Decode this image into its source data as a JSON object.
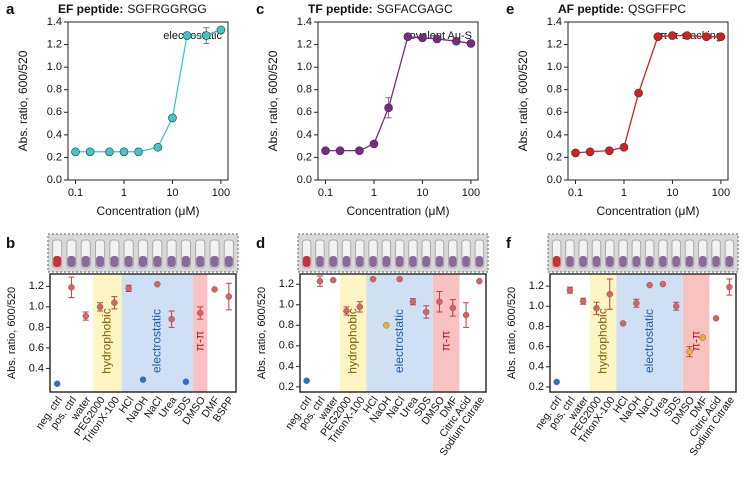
{
  "chart_data": [
    {
      "type": "line",
      "panel": "a",
      "title": "EF peptide:",
      "sequence": "SGFRGGRGG",
      "annotation": "electrostatic",
      "x_label": "Concentration (μM)",
      "y_label": "Abs. ratio, 600/520",
      "x": [
        0.1,
        0.2,
        0.5,
        1,
        2,
        5,
        10,
        20,
        50,
        100
      ],
      "values": [
        0.25,
        0.25,
        0.25,
        0.25,
        0.25,
        0.29,
        0.55,
        1.28,
        1.28,
        1.33
      ],
      "errors": [
        null,
        null,
        null,
        null,
        null,
        null,
        null,
        null,
        0.07,
        null
      ],
      "color": "#3cc8c8",
      "log_x": true,
      "xlim": [
        0.07,
        140
      ],
      "xticks": [
        0.1,
        1,
        10,
        100
      ],
      "ylim": [
        0,
        1.4
      ],
      "yticks": [
        {
          "value": 0,
          "label": "0.0"
        },
        0.2,
        0.4,
        0.6,
        0.8,
        {
          "value": 1,
          "label": "1.0"
        },
        1.2,
        1.4
      ]
    },
    {
      "type": "dot",
      "panel": "b",
      "y_label": "Abs. ratio, 600/520",
      "categories": [
        "neg. ctrl",
        "pos. ctrl",
        "water",
        "PEG2000",
        "TritonX-100",
        "HCl",
        "NaOH",
        "NaCl",
        "Urea",
        "SDS",
        "DMSO",
        "DMF",
        "BSPP"
      ],
      "values": [
        0.25,
        1.19,
        0.91,
        1.0,
        1.04,
        1.18,
        0.29,
        1.22,
        0.88,
        0.27,
        0.94,
        1.17,
        1.1
      ],
      "errors": [
        null,
        0.1,
        0.04,
        0.04,
        0.06,
        0.03,
        null,
        null,
        0.08,
        null,
        0.06,
        null,
        0.13
      ],
      "colors": [
        "#2a6fd6",
        "#e06060",
        "#e06060",
        "#e06060",
        "#e06060",
        "#e06060",
        "#2a6fd6",
        "#e06060",
        "#e06060",
        "#2a6fd6",
        "#e06060",
        "#e06060",
        "#e06060"
      ],
      "regions": [
        {
          "label": "hydrophobic",
          "start": "PEG2000",
          "end": "TritonX-100",
          "color": "#fdf5c4",
          "text_color": "#7a6200"
        },
        {
          "label": "electrostatic",
          "start": "HCl",
          "end": "SDS",
          "color": "#cfe0f4",
          "text_color": "#1f5fb0"
        },
        {
          "label": "π-π",
          "start": "DMSO",
          "end": "DMSO",
          "color": "#f9c2c2",
          "text_color": "#c01818"
        }
      ],
      "ylim": [
        0.17,
        1.32
      ],
      "yticks": [
        0.4,
        0.6,
        0.8,
        {
          "value": 1,
          "label": "1.0"
        },
        1.2
      ]
    },
    {
      "type": "line",
      "panel": "c",
      "title": "TF peptide:",
      "sequence": "SGFACGAGC",
      "annotation": "covalent Au-S",
      "x_label": "Concentration (μM)",
      "y_label": "Abs. ratio, 600/520",
      "x": [
        0.1,
        0.2,
        0.5,
        1,
        2,
        5,
        10,
        20,
        50,
        100
      ],
      "values": [
        0.26,
        0.26,
        0.26,
        0.32,
        0.64,
        1.27,
        1.26,
        1.25,
        1.23,
        1.21
      ],
      "errors": [
        null,
        null,
        null,
        null,
        0.09,
        null,
        null,
        null,
        null,
        null
      ],
      "color": "#7a2a82",
      "log_x": true,
      "xlim": [
        0.07,
        140
      ],
      "xticks": [
        0.1,
        1,
        10,
        100
      ],
      "ylim": [
        0,
        1.4
      ],
      "yticks": [
        {
          "value": 0,
          "label": "0.0"
        },
        0.2,
        0.4,
        0.6,
        0.8,
        {
          "value": 1,
          "label": "1.0"
        },
        1.2,
        1.4
      ]
    },
    {
      "type": "dot",
      "panel": "d",
      "y_label": "Abs. ratio, 600/520",
      "categories": [
        "neg. ctrl",
        "pos. ctrl",
        "water",
        "PEG2000",
        "TritonX-100",
        "HCl",
        "NaOH",
        "NaCl",
        "Urea",
        "SDS",
        "DMSO",
        "DMF",
        "Citric Acid",
        "Sodium Citrate"
      ],
      "values": [
        0.26,
        1.23,
        1.24,
        0.94,
        0.98,
        1.25,
        0.8,
        1.25,
        1.03,
        0.93,
        1.03,
        0.97,
        0.9,
        1.23
      ],
      "errors": [
        null,
        0.05,
        null,
        0.04,
        0.05,
        null,
        null,
        null,
        0.03,
        0.06,
        0.1,
        0.08,
        0.12,
        null
      ],
      "colors": [
        "#2a6fd6",
        "#e06060",
        "#e06060",
        "#e06060",
        "#e06060",
        "#e06060",
        "#f0b020",
        "#e06060",
        "#e06060",
        "#e06060",
        "#e06060",
        "#e06060",
        "#e06060",
        "#e06060"
      ],
      "regions": [
        {
          "label": "hydrophobic",
          "start": "PEG2000",
          "end": "TritonX-100",
          "color": "#fdf5c4",
          "text_color": "#7a6200"
        },
        {
          "label": "electrostatic",
          "start": "HCl",
          "end": "SDS",
          "color": "#cfe0f4",
          "text_color": "#1f5fb0"
        },
        {
          "label": "π-π",
          "start": "DMSO",
          "end": "DMF",
          "color": "#f9c2c2",
          "text_color": "#c01818"
        }
      ],
      "ylim": [
        0.15,
        1.3
      ],
      "yticks": [
        0.2,
        0.4,
        0.6,
        0.8,
        {
          "value": 1,
          "label": "1.0"
        },
        1.2
      ]
    },
    {
      "type": "line",
      "panel": "e",
      "title": "AF peptide:",
      "sequence": "QSGFFPC",
      "annotation": "π-π stacking",
      "x_label": "Concentration (μM)",
      "y_label": "Abs. ratio, 600/520",
      "x": [
        0.1,
        0.2,
        0.5,
        1,
        2,
        5,
        10,
        20,
        50,
        100
      ],
      "values": [
        0.24,
        0.25,
        0.26,
        0.29,
        0.77,
        1.27,
        1.28,
        1.28,
        1.27,
        1.27
      ],
      "errors": [
        null,
        null,
        null,
        null,
        null,
        null,
        null,
        null,
        null,
        null
      ],
      "color": "#d42020",
      "log_x": true,
      "xlim": [
        0.07,
        140
      ],
      "xticks": [
        0.1,
        1,
        10,
        100
      ],
      "ylim": [
        0,
        1.4
      ],
      "yticks": [
        {
          "value": 0,
          "label": "0.0"
        },
        0.2,
        0.4,
        0.6,
        0.8,
        {
          "value": 1,
          "label": "1.0"
        },
        1.2,
        1.4
      ]
    },
    {
      "type": "dot",
      "panel": "f",
      "y_label": "Abs. ratio, 600/520",
      "categories": [
        "neg. ctrl",
        "pos. ctrl",
        "water",
        "PEG2000",
        "TritonX-100",
        "HCl",
        "NaOH",
        "NaCl",
        "Urea",
        "SDS",
        "DMSO",
        "DMF",
        "Citric Acid",
        "Sodium Citrate"
      ],
      "values": [
        0.25,
        1.16,
        1.05,
        0.98,
        1.12,
        0.83,
        1.03,
        1.21,
        1.22,
        1.0,
        0.55,
        0.69,
        0.88,
        1.19
      ],
      "errors": [
        null,
        0.03,
        0.03,
        0.06,
        0.15,
        null,
        0.04,
        null,
        null,
        0.04,
        0.05,
        null,
        null,
        0.08
      ],
      "colors": [
        "#2a6fd6",
        "#e06060",
        "#e06060",
        "#e06060",
        "#e06060",
        "#e06060",
        "#e06060",
        "#e06060",
        "#e06060",
        "#e06060",
        "#f0b020",
        "#f0b020",
        "#e06060",
        "#e06060"
      ],
      "regions": [
        {
          "label": "hydrophobic",
          "start": "PEG2000",
          "end": "TritonX-100",
          "color": "#fdf5c4",
          "text_color": "#7a6200"
        },
        {
          "label": "electrostatic",
          "start": "HCl",
          "end": "SDS",
          "color": "#cfe0f4",
          "text_color": "#1f5fb0"
        },
        {
          "label": "π-π",
          "start": "DMSO",
          "end": "DMF",
          "color": "#f9c2c2",
          "text_color": "#c01818"
        }
      ],
      "ylim": [
        0.15,
        1.32
      ],
      "yticks": [
        0.2,
        0.4,
        0.6,
        0.8,
        {
          "value": 1,
          "label": "1.0"
        },
        1.2
      ]
    }
  ]
}
